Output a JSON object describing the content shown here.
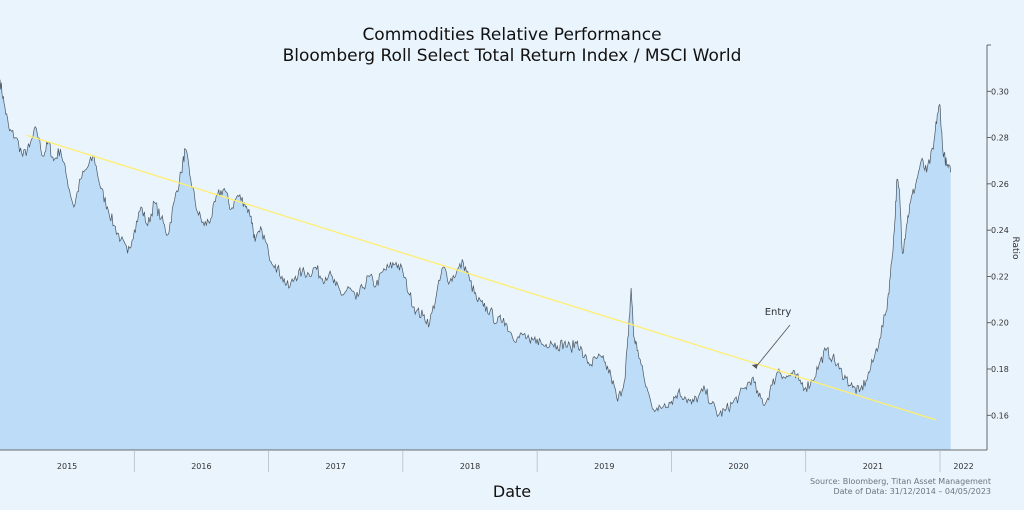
{
  "chart_data": {
    "type": "area",
    "title": "Commodities Relative Performance",
    "subtitle": "Bloomberg Roll Select Total Return Index / MSCI World",
    "xlabel": "Date",
    "ylabel": "Ratio",
    "xlim": [
      2015.0,
      2022.35
    ],
    "ylim": [
      0.145,
      0.32
    ],
    "yticks": [
      0.16,
      0.18,
      0.2,
      0.22,
      0.24,
      0.26,
      0.28,
      0.3
    ],
    "ytick_labels": [
      "0.16",
      "0.18",
      "0.20",
      "0.22",
      "0.24",
      "0.26",
      "0.28",
      "0.30"
    ],
    "xtick_labels": [
      {
        "year": 2015,
        "label": "2015"
      },
      {
        "year": 2016,
        "label": "2016"
      },
      {
        "year": 2017,
        "label": "2017"
      },
      {
        "year": 2018,
        "label": "2018"
      },
      {
        "year": 2019,
        "label": "2019"
      },
      {
        "year": 2020,
        "label": "2020"
      },
      {
        "year": 2021,
        "label": "2021"
      },
      {
        "year": 2022,
        "label": "2022"
      }
    ],
    "series": [
      {
        "name": "Ratio",
        "points": [
          [
            2015.0,
            0.305
          ],
          [
            2015.03,
            0.295
          ],
          [
            2015.07,
            0.283
          ],
          [
            2015.12,
            0.28
          ],
          [
            2015.17,
            0.272
          ],
          [
            2015.22,
            0.276
          ],
          [
            2015.27,
            0.284
          ],
          [
            2015.32,
            0.272
          ],
          [
            2015.36,
            0.278
          ],
          [
            2015.4,
            0.27
          ],
          [
            2015.45,
            0.275
          ],
          [
            2015.5,
            0.262
          ],
          [
            2015.55,
            0.25
          ],
          [
            2015.6,
            0.262
          ],
          [
            2015.65,
            0.267
          ],
          [
            2015.7,
            0.272
          ],
          [
            2015.75,
            0.258
          ],
          [
            2015.8,
            0.25
          ],
          [
            2015.85,
            0.242
          ],
          [
            2015.9,
            0.236
          ],
          [
            2015.95,
            0.23
          ],
          [
            2016.0,
            0.24
          ],
          [
            2016.05,
            0.25
          ],
          [
            2016.1,
            0.242
          ],
          [
            2016.15,
            0.252
          ],
          [
            2016.2,
            0.245
          ],
          [
            2016.25,
            0.238
          ],
          [
            2016.3,
            0.253
          ],
          [
            2016.35,
            0.265
          ],
          [
            2016.38,
            0.275
          ],
          [
            2016.42,
            0.262
          ],
          [
            2016.47,
            0.248
          ],
          [
            2016.52,
            0.242
          ],
          [
            2016.57,
            0.245
          ],
          [
            2016.62,
            0.255
          ],
          [
            2016.67,
            0.258
          ],
          [
            2016.72,
            0.249
          ],
          [
            2016.77,
            0.255
          ],
          [
            2016.82,
            0.252
          ],
          [
            2016.87,
            0.246
          ],
          [
            2016.9,
            0.235
          ],
          [
            2016.95,
            0.24
          ],
          [
            2017.0,
            0.23
          ],
          [
            2017.05,
            0.225
          ],
          [
            2017.1,
            0.22
          ],
          [
            2017.15,
            0.215
          ],
          [
            2017.2,
            0.22
          ],
          [
            2017.25,
            0.222
          ],
          [
            2017.3,
            0.221
          ],
          [
            2017.35,
            0.224
          ],
          [
            2017.4,
            0.219
          ],
          [
            2017.45,
            0.221
          ],
          [
            2017.5,
            0.216
          ],
          [
            2017.55,
            0.212
          ],
          [
            2017.6,
            0.215
          ],
          [
            2017.65,
            0.21
          ],
          [
            2017.7,
            0.215
          ],
          [
            2017.75,
            0.22
          ],
          [
            2017.8,
            0.216
          ],
          [
            2017.85,
            0.222
          ],
          [
            2017.9,
            0.224
          ],
          [
            2017.95,
            0.226
          ],
          [
            2018.0,
            0.222
          ],
          [
            2018.05,
            0.212
          ],
          [
            2018.1,
            0.205
          ],
          [
            2018.15,
            0.203
          ],
          [
            2018.2,
            0.2
          ],
          [
            2018.25,
            0.212
          ],
          [
            2018.3,
            0.224
          ],
          [
            2018.35,
            0.218
          ],
          [
            2018.4,
            0.222
          ],
          [
            2018.45,
            0.226
          ],
          [
            2018.5,
            0.218
          ],
          [
            2018.55,
            0.21
          ],
          [
            2018.6,
            0.207
          ],
          [
            2018.65,
            0.205
          ],
          [
            2018.7,
            0.2
          ],
          [
            2018.75,
            0.202
          ],
          [
            2018.8,
            0.196
          ],
          [
            2018.85,
            0.193
          ],
          [
            2018.9,
            0.195
          ],
          [
            2018.95,
            0.191
          ],
          [
            2019.0,
            0.193
          ],
          [
            2019.05,
            0.19
          ],
          [
            2019.1,
            0.192
          ],
          [
            2019.15,
            0.19
          ],
          [
            2019.2,
            0.191
          ],
          [
            2019.25,
            0.189
          ],
          [
            2019.3,
            0.192
          ],
          [
            2019.35,
            0.185
          ],
          [
            2019.4,
            0.182
          ],
          [
            2019.45,
            0.185
          ],
          [
            2019.5,
            0.183
          ],
          [
            2019.55,
            0.177
          ],
          [
            2019.6,
            0.166
          ],
          [
            2019.65,
            0.175
          ],
          [
            2019.68,
            0.195
          ],
          [
            2019.7,
            0.215
          ],
          [
            2019.72,
            0.194
          ],
          [
            2019.75,
            0.188
          ],
          [
            2019.8,
            0.175
          ],
          [
            2019.85,
            0.165
          ],
          [
            2019.9,
            0.162
          ],
          [
            2019.95,
            0.165
          ],
          [
            2020.0,
            0.166
          ],
          [
            2020.05,
            0.17
          ],
          [
            2020.1,
            0.168
          ],
          [
            2020.15,
            0.165
          ],
          [
            2020.2,
            0.168
          ],
          [
            2020.25,
            0.171
          ],
          [
            2020.3,
            0.165
          ],
          [
            2020.35,
            0.16
          ],
          [
            2020.4,
            0.162
          ],
          [
            2020.45,
            0.165
          ],
          [
            2020.5,
            0.168
          ],
          [
            2020.55,
            0.172
          ],
          [
            2020.6,
            0.176
          ],
          [
            2020.65,
            0.168
          ],
          [
            2020.7,
            0.165
          ],
          [
            2020.75,
            0.173
          ],
          [
            2020.8,
            0.18
          ],
          [
            2020.85,
            0.176
          ],
          [
            2020.9,
            0.178
          ],
          [
            2020.95,
            0.175
          ],
          [
            2021.0,
            0.172
          ],
          [
            2021.05,
            0.175
          ],
          [
            2021.1,
            0.182
          ],
          [
            2021.15,
            0.188
          ],
          [
            2021.2,
            0.185
          ],
          [
            2021.25,
            0.18
          ],
          [
            2021.3,
            0.176
          ],
          [
            2021.35,
            0.172
          ],
          [
            2021.4,
            0.17
          ],
          [
            2021.45,
            0.175
          ],
          [
            2021.5,
            0.183
          ],
          [
            2021.55,
            0.193
          ],
          [
            2021.6,
            0.205
          ],
          [
            2021.63,
            0.22
          ],
          [
            2021.66,
            0.24
          ],
          [
            2021.68,
            0.262
          ],
          [
            2021.7,
            0.255
          ],
          [
            2021.72,
            0.23
          ],
          [
            2021.75,
            0.242
          ],
          [
            2021.78,
            0.252
          ],
          [
            2021.82,
            0.26
          ],
          [
            2021.86,
            0.27
          ],
          [
            2021.9,
            0.265
          ],
          [
            2021.95,
            0.275
          ],
          [
            2021.98,
            0.29
          ],
          [
            2022.0,
            0.294
          ],
          [
            2022.02,
            0.275
          ],
          [
            2022.05,
            0.268
          ],
          [
            2022.08,
            0.265
          ]
        ]
      }
    ],
    "trendline": {
      "x": [
        2015.2,
        2021.97
      ],
      "y": [
        0.281,
        0.158
      ],
      "color": "#ffee70"
    },
    "annotation": {
      "text": "Entry",
      "x": 2020.65,
      "y": 0.177
    },
    "source_lines": [
      "Source: Bloomberg, Titan Asset Management",
      "Date of Data: 31/12/2014 – 04/05/2023"
    ],
    "colors": {
      "fill": "#bcdcf7",
      "line": "#4a5560",
      "background": "#eaf4fc",
      "trend": "#ffee70"
    }
  }
}
